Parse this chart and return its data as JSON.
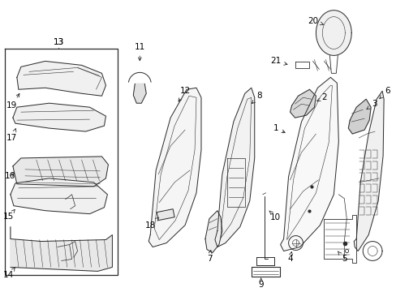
{
  "bg_color": "#ffffff",
  "line_color": "#2a2a2a",
  "fig_width": 4.89,
  "fig_height": 3.6,
  "dpi": 100,
  "font_size": 7.5,
  "lw": 0.7
}
